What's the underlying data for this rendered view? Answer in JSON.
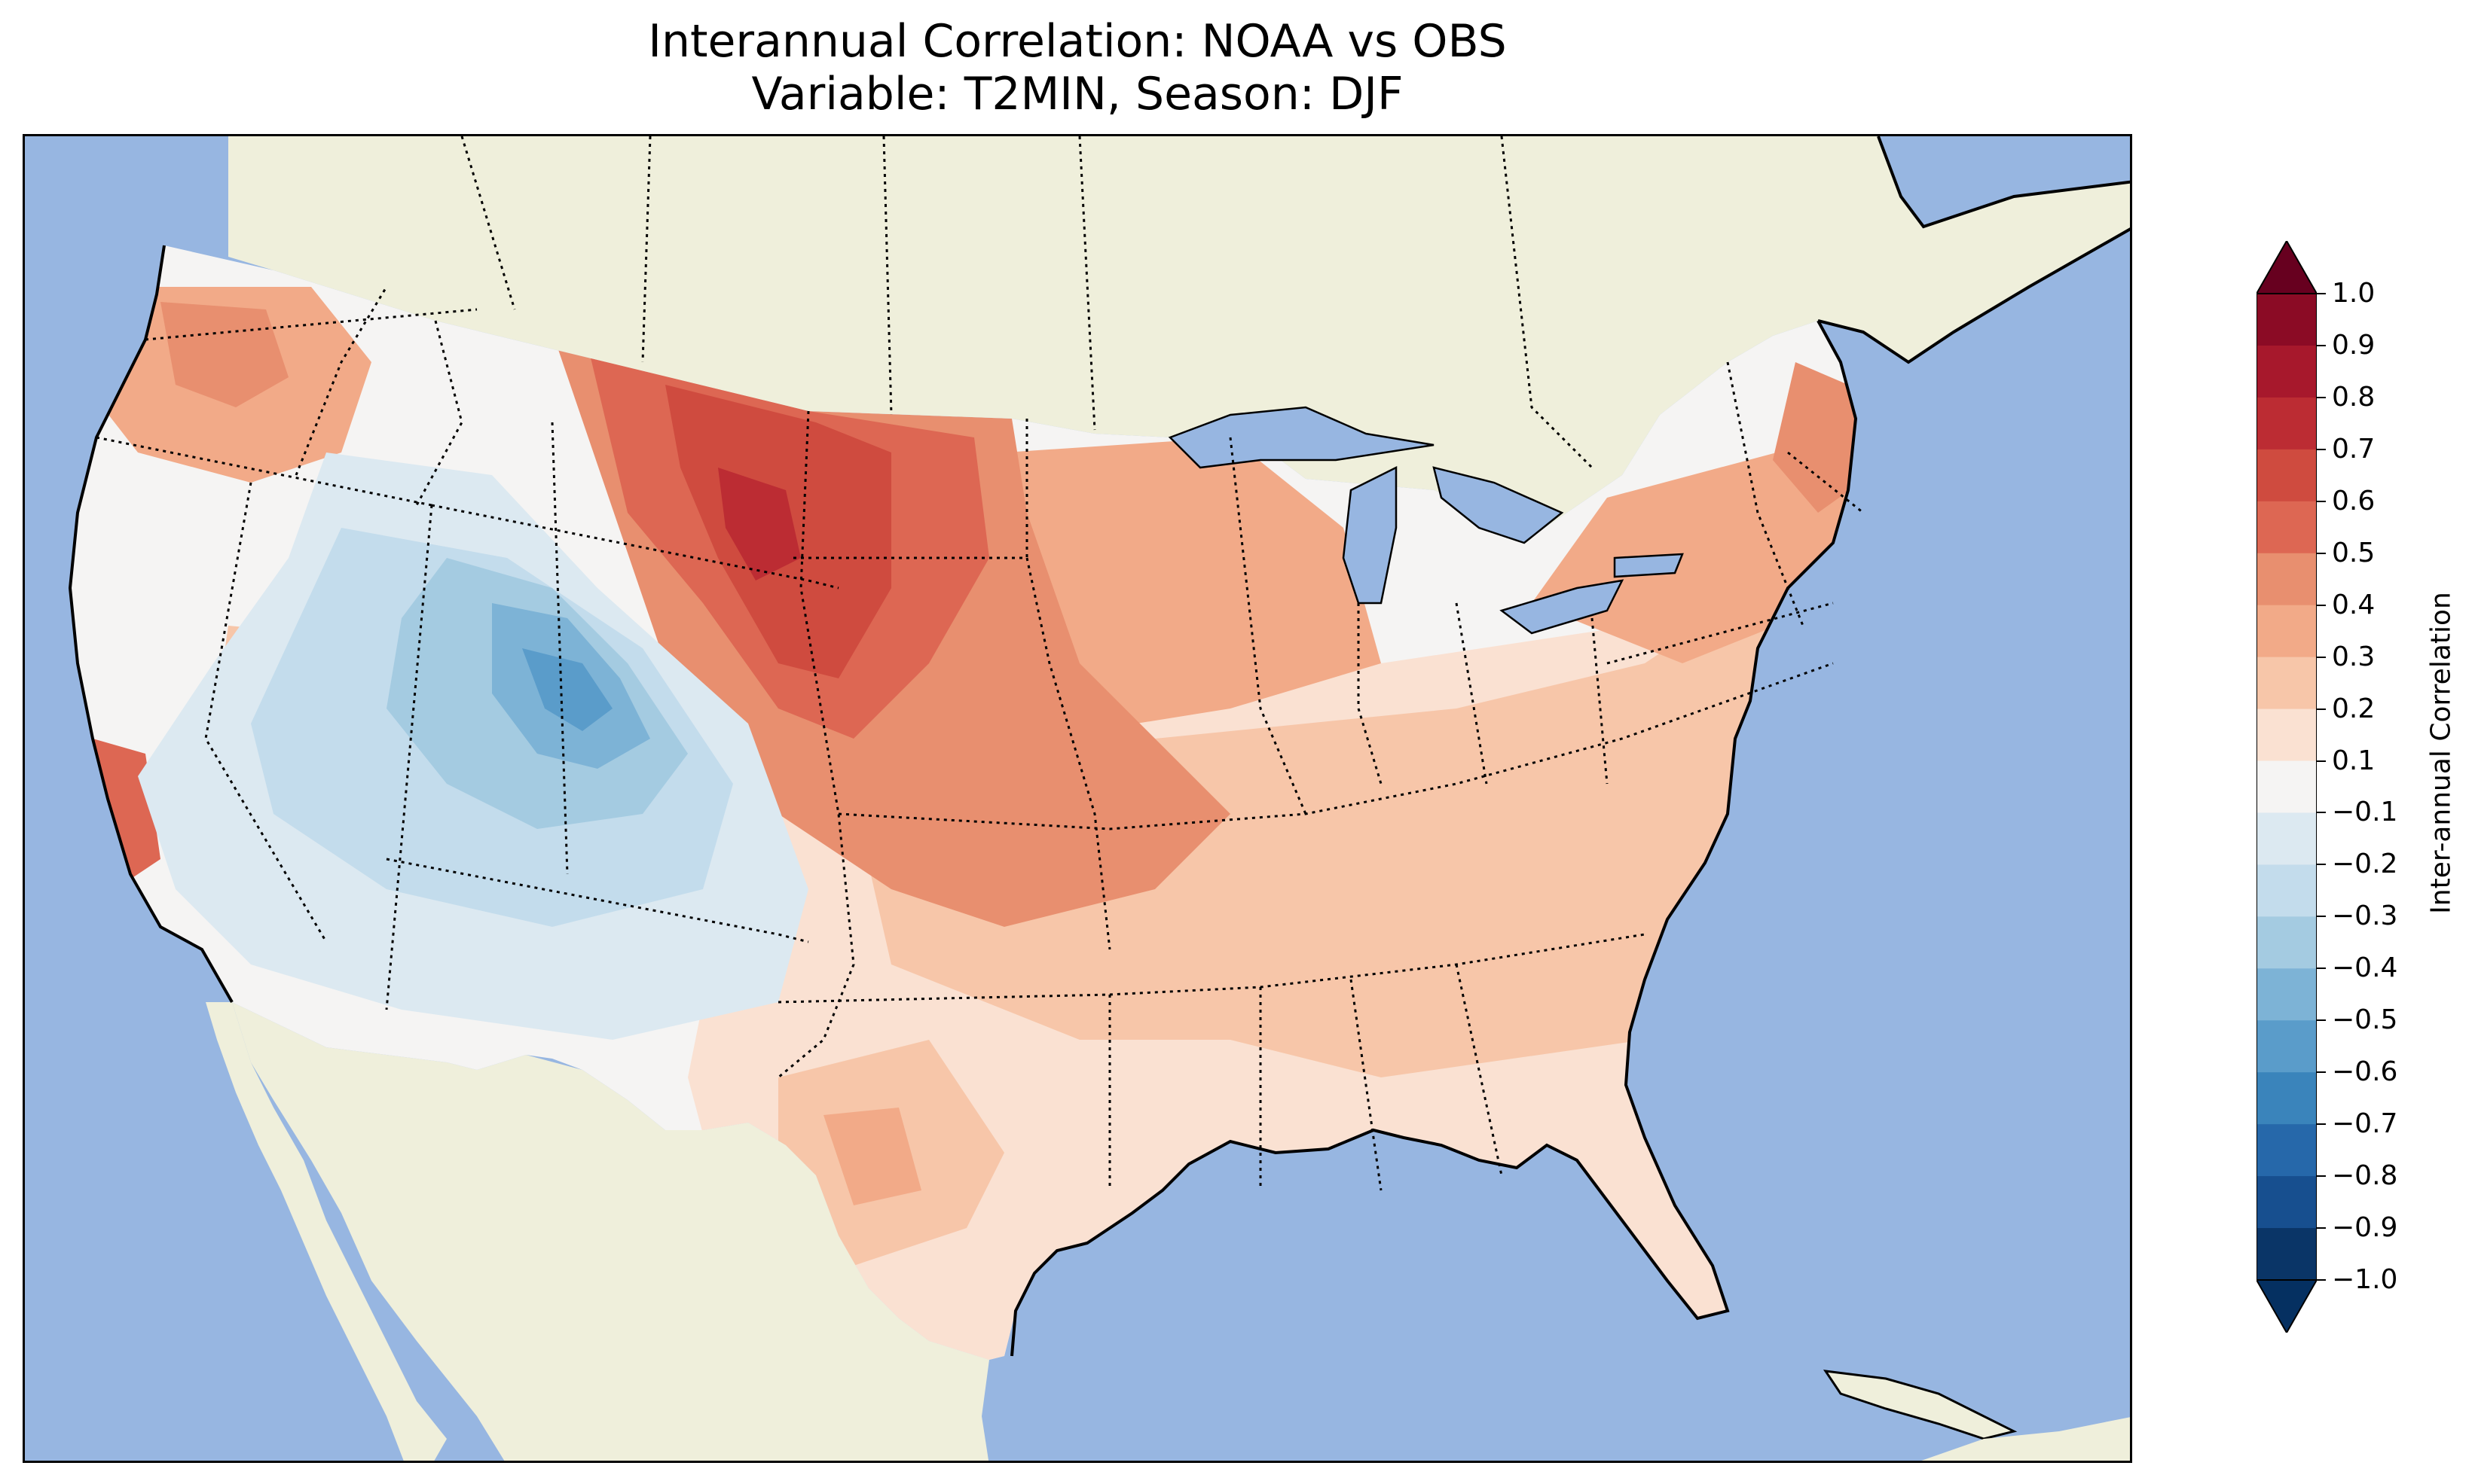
{
  "title_line1": "Interannual Correlation: NOAA vs OBS",
  "title_line2": "Variable: T2MIN, Season: DJF",
  "colorbar": {
    "label": "Inter-annual Correlation",
    "ticks": [
      "1.0",
      "0.9",
      "0.8",
      "0.7",
      "0.6",
      "0.5",
      "0.4",
      "0.3",
      "0.2",
      "0.1",
      "−0.1",
      "−0.2",
      "−0.3",
      "−0.4",
      "−0.5",
      "−0.6",
      "−0.7",
      "−0.8",
      "−0.9",
      "−1.0"
    ],
    "colors": [
      "#8b0b25",
      "#a7182c",
      "#bc2c33",
      "#cf4b3f",
      "#dd6753",
      "#e88f6f",
      "#f2aa88",
      "#f7c6a9",
      "#fae1d2",
      "#f5f4f3",
      "#dce9f1",
      "#c3dcec",
      "#a4cbe1",
      "#7db3d6",
      "#5a9cca",
      "#3a84bb",
      "#2668aa",
      "#174f8f",
      "#0a3567"
    ],
    "extend": "both",
    "range": [
      -1.0,
      1.0
    ]
  },
  "map": {
    "ocean_color": "#97b6e1",
    "land_color": "#efefdb",
    "boundaries": "coastlines, country and state borders"
  }
}
